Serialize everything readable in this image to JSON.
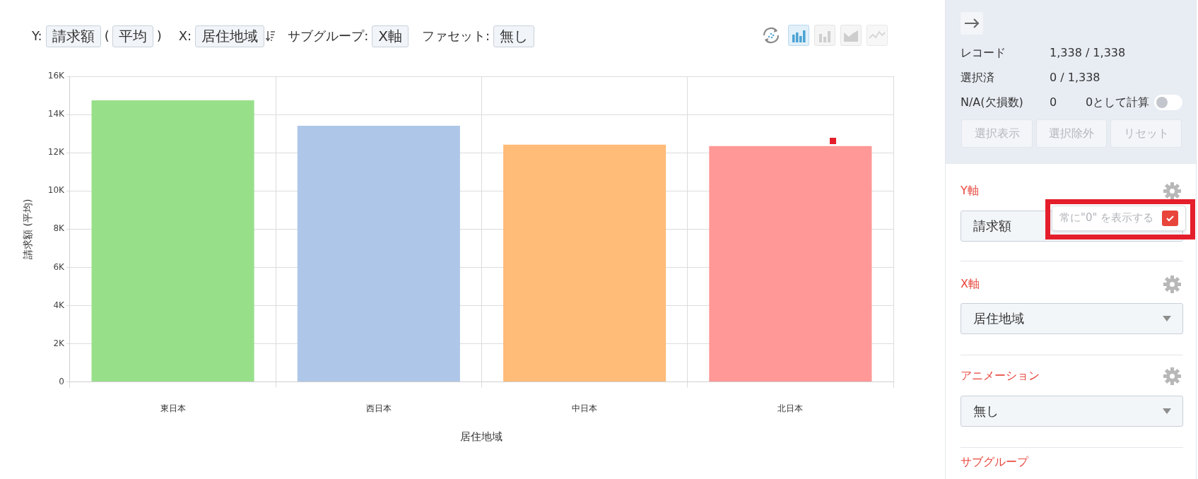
{
  "chart_data": [
    {
      "type": "bar",
      "xlabel": "居住地域",
      "ylabel": "請求額 (平均)",
      "categories": [
        "東日本",
        "西日本",
        "中日本",
        "北日本"
      ],
      "values": [
        14740,
        13410,
        12420,
        12350
      ],
      "colors": [
        "#98df8a",
        "#aec7e8",
        "#ffbb78",
        "#ff9896"
      ],
      "ylim": [
        0,
        16000
      ],
      "yticks": [
        0,
        {
          "value": 2000,
          "label": "2K"
        },
        {
          "value": 4000,
          "label": "4K"
        },
        {
          "value": 6000,
          "label": "6K"
        },
        {
          "value": 8000,
          "label": "8K"
        },
        {
          "value": 10000,
          "label": "10K"
        },
        {
          "value": 12000,
          "label": "12K"
        },
        {
          "value": 14000,
          "label": "14K"
        },
        {
          "value": 16000,
          "label": "16K"
        }
      ],
      "grid": true,
      "annotations": [
        "Y:",
        "請求額",
        "(",
        "平均",
        ")",
        "X:",
        "居住地域",
        "サブグループ:",
        "X軸",
        "ファセット:",
        "無し"
      ]
    },
    {
      "type": "other",
      "annotations": [
        "レコード",
        "1,338 / 1,338",
        "選択済",
        "0 / 1,338",
        "N/A(欠損数)",
        "0",
        "0として計算",
        "選択表示",
        "選択除外",
        "リセット",
        "Y軸",
        "請求額",
        "常に\"0\" を表示する",
        "X軸",
        "居住地域",
        "アニメーション",
        "無し",
        "サブグループ"
      ]
    }
  ]
}
